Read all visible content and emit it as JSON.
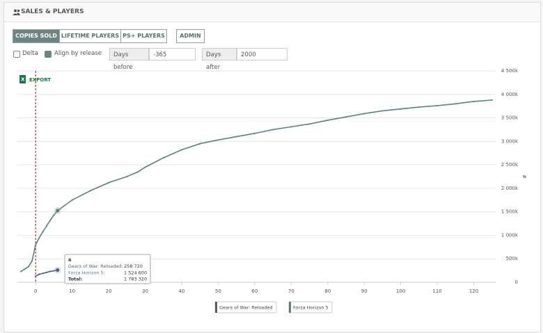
{
  "header": {
    "title": "SALES & PLAYERS"
  },
  "tabs": [
    {
      "label": "COPIES SOLD",
      "active": true
    },
    {
      "label": "LIFETIME PLAYERS",
      "active": false
    },
    {
      "label": "PS+ PLAYERS",
      "active": false
    },
    {
      "label": "ADMIN",
      "active": false
    }
  ],
  "controls": {
    "delta": {
      "label": "Delta",
      "checked": false
    },
    "align": {
      "label": "Align by release",
      "checked": true
    },
    "days_before": {
      "label": "Days before",
      "value": "-365"
    },
    "days_after": {
      "label": "Days after",
      "value": "2000"
    }
  },
  "export": "EXPORT",
  "tooltip": {
    "title": "6",
    "rows": [
      {
        "label": "Gears of War: Reloaded:",
        "value": "258 720"
      },
      {
        "label": "Forza Horizon 5:",
        "value": "1 524 600"
      },
      {
        "label": "Total:",
        "value": "1 783 320"
      }
    ]
  },
  "chart_data": {
    "type": "line",
    "y_label": "#",
    "xlim": [
      -5,
      126
    ],
    "xticks": [
      0,
      10,
      20,
      30,
      40,
      50,
      60,
      70,
      80,
      90,
      100,
      110,
      120
    ],
    "ylim": [
      0,
      4500000
    ],
    "yticks": [
      {
        "value": 0,
        "label": "0"
      },
      {
        "value": 500000,
        "label": "500k"
      },
      {
        "value": 1000000,
        "label": "1 000k"
      },
      {
        "value": 1500000,
        "label": "1 500k"
      },
      {
        "value": 2000000,
        "label": "2 000k"
      },
      {
        "value": 2500000,
        "label": "2 500k"
      },
      {
        "value": 3000000,
        "label": "3 000k"
      },
      {
        "value": 3500000,
        "label": "3 500k"
      },
      {
        "value": 4000000,
        "label": "4 000k"
      },
      {
        "value": 4500000,
        "label": "4 500k"
      }
    ],
    "grid": true,
    "release_line": {
      "x": 0,
      "color": "#d62728"
    },
    "highlight_x": 6,
    "series": [
      {
        "name": "Gears of War: Reloaded",
        "color": "#4f5f86",
        "x": [
          0,
          1,
          2,
          3,
          4,
          5,
          6
        ],
        "values": [
          130000,
          170000,
          190000,
          210000,
          230000,
          245000,
          258720
        ]
      },
      {
        "name": "Forza Horizon 5",
        "color": "#5f7f80",
        "x": [
          -4,
          -3,
          -2,
          -1,
          0,
          1,
          2,
          3,
          4,
          5,
          6,
          10,
          15,
          20,
          25,
          28,
          30,
          35,
          40,
          45,
          50,
          55,
          60,
          65,
          70,
          75,
          80,
          85,
          90,
          95,
          100,
          105,
          110,
          115,
          120,
          125
        ],
        "values": [
          230000,
          280000,
          330000,
          450000,
          800000,
          950000,
          1080000,
          1200000,
          1320000,
          1430000,
          1524600,
          1750000,
          1950000,
          2120000,
          2250000,
          2350000,
          2450000,
          2650000,
          2820000,
          2950000,
          3030000,
          3100000,
          3170000,
          3250000,
          3310000,
          3370000,
          3450000,
          3520000,
          3590000,
          3650000,
          3690000,
          3730000,
          3760000,
          3800000,
          3850000,
          3880000
        ]
      }
    ]
  }
}
